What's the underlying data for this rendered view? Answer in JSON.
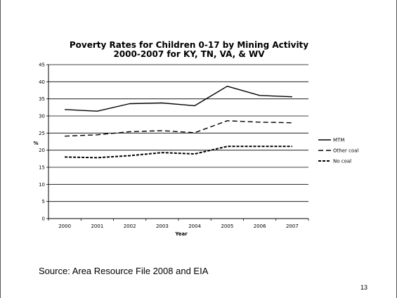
{
  "chart_data": {
    "type": "line",
    "title_lines": [
      "Poverty Rates for Children 0-17 by Mining Activity",
      "2000-2007 for KY, TN, VA, & WV"
    ],
    "xlabel": "Year",
    "ylabel": "%",
    "x": [
      "2000",
      "2001",
      "2002",
      "2003",
      "2004",
      "2005",
      "2006",
      "2007"
    ],
    "ylim": [
      0,
      45
    ],
    "yticks": [
      0,
      5,
      10,
      15,
      20,
      25,
      30,
      35,
      40,
      45
    ],
    "grid": true,
    "legend_position": "right",
    "series": [
      {
        "name": "MTM",
        "dash": "solid",
        "values": [
          31.9,
          31.4,
          33.6,
          33.8,
          33.0,
          38.7,
          36.0,
          35.6
        ]
      },
      {
        "name": "Other coal",
        "dash": "dashed",
        "values": [
          24.1,
          24.5,
          25.4,
          25.7,
          25.1,
          28.6,
          28.2,
          28.0
        ]
      },
      {
        "name": "No coal",
        "dash": "dotted",
        "values": [
          18.0,
          17.8,
          18.4,
          19.3,
          18.9,
          21.1,
          21.1,
          21.1
        ]
      }
    ]
  },
  "source_text": "Source: Area Resource File 2008 and EIA",
  "page_number": "13"
}
